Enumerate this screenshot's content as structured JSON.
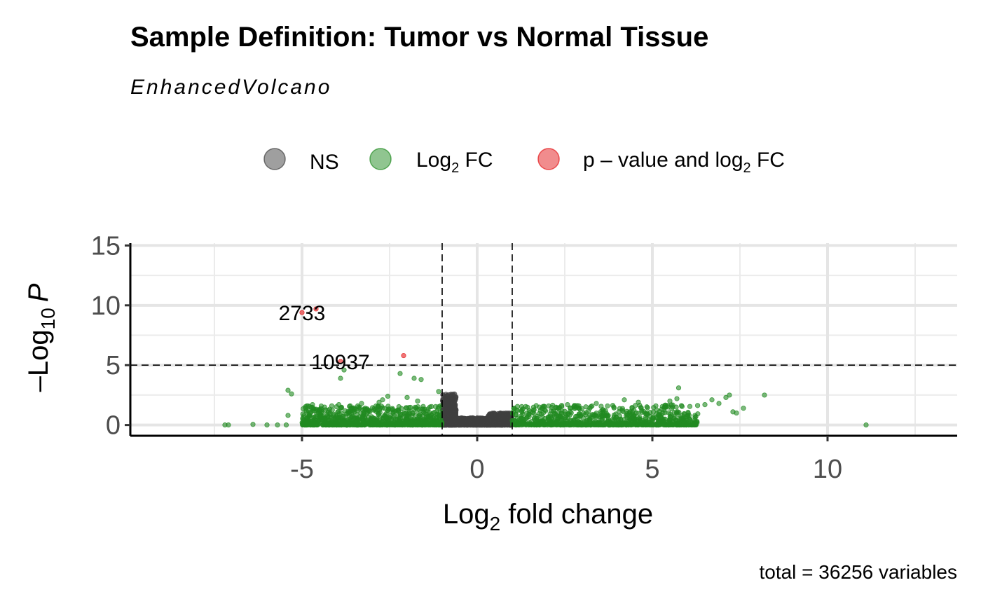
{
  "chart_data": {
    "type": "scatter",
    "title": "Sample Definition: Tumor vs Normal Tissue",
    "subtitle": "EnhancedVolcano",
    "caption": "total = 36256 variables",
    "xlabel": {
      "base": "Log",
      "sub": "2",
      "rest": " fold change"
    },
    "ylabel": {
      "prefix": "–Log",
      "sub": "10",
      "italic": "P"
    },
    "xlim": [
      -9.9,
      13.7
    ],
    "ylim": [
      -0.9,
      15.2
    ],
    "x_ticks": [
      -5,
      0,
      5,
      10
    ],
    "x_tick_labels": [
      "-5",
      "0",
      "5",
      "10"
    ],
    "y_ticks": [
      0,
      5,
      10,
      15
    ],
    "y_tick_labels": [
      "0",
      "5",
      "10",
      "15"
    ],
    "grid": true,
    "legend_position": "top",
    "thresholds": {
      "fc_cutoff": [
        -1,
        1
      ],
      "p_cutoff": 5
    },
    "colors": {
      "NS": "#404040",
      "Log2FC": "#228b22",
      "PvalueLog2FC": "#e41a1c"
    },
    "legend": [
      {
        "key": "NS",
        "label": "NS",
        "color": "#404040"
      },
      {
        "key": "Log2FC",
        "label_base": "Log",
        "label_sub": "2",
        "label_rest": " FC",
        "color": "#228b22"
      },
      {
        "key": "PvalueLog2FC",
        "label_base": "p – value and log",
        "label_sub": "2",
        "label_rest": " FC",
        "color": "#e41a1c"
      }
    ],
    "series": [
      {
        "name": "p – value and log2 FC",
        "key": "PvalueLog2FC",
        "points": [
          {
            "x": -5.0,
            "y": 9.4,
            "label": "2733"
          },
          {
            "x": -4.6,
            "y": 9.7
          },
          {
            "x": -2.1,
            "y": 5.8
          },
          {
            "x": -3.9,
            "y": 5.3,
            "label": "10937"
          }
        ]
      },
      {
        "name": "Log2 FC",
        "key": "Log2FC",
        "points": [
          {
            "x": -7.2,
            "y": 0.0
          },
          {
            "x": -7.1,
            "y": 0.0
          },
          {
            "x": -6.4,
            "y": 0.05
          },
          {
            "x": -6.0,
            "y": 0.0
          },
          {
            "x": -5.7,
            "y": 0.0
          },
          {
            "x": -5.45,
            "y": 0.0
          },
          {
            "x": -5.4,
            "y": 0.8
          },
          {
            "x": -5.4,
            "y": 2.9
          },
          {
            "x": -5.3,
            "y": 2.6
          },
          {
            "x": -4.7,
            "y": 1.7
          },
          {
            "x": -4.5,
            "y": 1.3
          },
          {
            "x": -4.45,
            "y": 0.7
          },
          {
            "x": -4.2,
            "y": 1.0
          },
          {
            "x": -4.15,
            "y": 1.6
          },
          {
            "x": -3.9,
            "y": 3.9
          },
          {
            "x": -3.8,
            "y": 4.6
          },
          {
            "x": -3.95,
            "y": 1.7
          },
          {
            "x": -3.5,
            "y": 1.1
          },
          {
            "x": -3.3,
            "y": 1.8
          },
          {
            "x": -3.35,
            "y": 0.5
          },
          {
            "x": -2.8,
            "y": 1.9
          },
          {
            "x": -2.7,
            "y": 2.1
          },
          {
            "x": -2.55,
            "y": 2.4
          },
          {
            "x": -2.4,
            "y": 1.0
          },
          {
            "x": -2.2,
            "y": 4.3
          },
          {
            "x": -2.0,
            "y": 2.3
          },
          {
            "x": -1.8,
            "y": 3.9
          },
          {
            "x": -1.7,
            "y": 2.0
          },
          {
            "x": -1.6,
            "y": 3.8
          },
          {
            "x": -1.35,
            "y": 1.5
          },
          {
            "x": -1.1,
            "y": 2.8
          },
          {
            "x": -1.05,
            "y": 1.6
          },
          {
            "x": 1.3,
            "y": 0.9
          },
          {
            "x": 1.8,
            "y": 1.2
          },
          {
            "x": 2.4,
            "y": 1.0
          },
          {
            "x": 2.9,
            "y": 1.4
          },
          {
            "x": 3.4,
            "y": 1.8
          },
          {
            "x": 3.9,
            "y": 1.5
          },
          {
            "x": 4.2,
            "y": 2.1
          },
          {
            "x": 4.6,
            "y": 1.9
          },
          {
            "x": 5.1,
            "y": 1.6
          },
          {
            "x": 5.5,
            "y": 2.0
          },
          {
            "x": 5.7,
            "y": 2.2
          },
          {
            "x": 5.75,
            "y": 3.1
          },
          {
            "x": 6.0,
            "y": 0.7
          },
          {
            "x": 6.2,
            "y": 0.0
          },
          {
            "x": 6.5,
            "y": 1.7
          },
          {
            "x": 6.7,
            "y": 2.1
          },
          {
            "x": 6.9,
            "y": 1.8
          },
          {
            "x": 7.1,
            "y": 2.3
          },
          {
            "x": 7.2,
            "y": 2.5
          },
          {
            "x": 7.3,
            "y": 1.1
          },
          {
            "x": 7.4,
            "y": 1.0
          },
          {
            "x": 7.6,
            "y": 1.4
          },
          {
            "x": 8.2,
            "y": 2.5
          },
          {
            "x": 11.1,
            "y": 0.0
          }
        ],
        "dense_bands": [
          {
            "x": [
              -5.0,
              -1.0
            ],
            "y": [
              0.0,
              1.6
            ]
          },
          {
            "x": [
              1.0,
              6.3
            ],
            "y": [
              0.0,
              1.7
            ]
          }
        ]
      },
      {
        "name": "NS",
        "key": "NS",
        "dense_bands": [
          {
            "x": [
              -1.0,
              -0.6
            ],
            "y": [
              0.0,
              2.6
            ]
          },
          {
            "x": [
              -0.6,
              0.3
            ],
            "y": [
              0.0,
              0.6
            ]
          },
          {
            "x": [
              0.3,
              1.0
            ],
            "y": [
              0.0,
              1.0
            ]
          }
        ],
        "points": [
          {
            "x": -0.9,
            "y": 2.4
          },
          {
            "x": -0.85,
            "y": 2.0
          },
          {
            "x": -0.75,
            "y": 1.5
          },
          {
            "x": -0.7,
            "y": 1.2
          },
          {
            "x": 0.8,
            "y": 0.9
          },
          {
            "x": 0.6,
            "y": 0.7
          }
        ]
      }
    ]
  }
}
